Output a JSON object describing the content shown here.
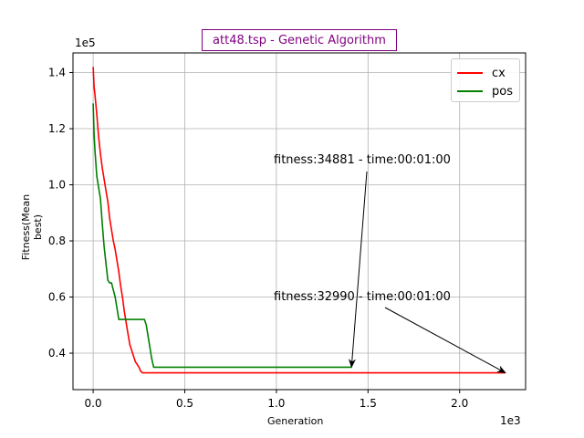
{
  "chart_data": {
    "type": "line",
    "title": "att48.tsp - Genetic Algorithm",
    "xlabel": "Generation",
    "ylabel": "Fitness(Mean best)",
    "x_multiplier_label": "1e3",
    "y_multiplier_label": "1e5",
    "xlim": [
      -0.11,
      2.36
    ],
    "ylim": [
      0.27,
      1.47
    ],
    "x_ticks": [
      0.0,
      0.5,
      1.0,
      1.5,
      2.0
    ],
    "x_tick_labels": [
      "0.0",
      "0.5",
      "1.0",
      "1.5",
      "2.0"
    ],
    "y_ticks": [
      0.4,
      0.6,
      0.8,
      1.0,
      1.2,
      1.4
    ],
    "y_tick_labels": [
      "0.4",
      "0.6",
      "0.8",
      "1.0",
      "1.2",
      "1.4"
    ],
    "grid": true,
    "legend_position": "top-right",
    "series": [
      {
        "name": "cx",
        "color": "#ff0000",
        "x": [
          0.0,
          0.005,
          0.01,
          0.02,
          0.03,
          0.04,
          0.05,
          0.06,
          0.07,
          0.08,
          0.09,
          0.1,
          0.11,
          0.12,
          0.13,
          0.14,
          0.15,
          0.16,
          0.17,
          0.18,
          0.19,
          0.2,
          0.21,
          0.22,
          0.23,
          0.24,
          0.25,
          0.26,
          0.27,
          0.3,
          1.0,
          2.0,
          2.25
        ],
        "y": [
          1.42,
          1.35,
          1.32,
          1.25,
          1.17,
          1.11,
          1.06,
          1.02,
          0.98,
          0.94,
          0.88,
          0.84,
          0.8,
          0.77,
          0.73,
          0.69,
          0.64,
          0.6,
          0.55,
          0.51,
          0.47,
          0.43,
          0.41,
          0.39,
          0.37,
          0.36,
          0.35,
          0.335,
          0.33,
          0.33,
          0.33,
          0.33,
          0.33
        ]
      },
      {
        "name": "pos",
        "color": "#008000",
        "x": [
          0.0,
          0.005,
          0.01,
          0.02,
          0.03,
          0.04,
          0.05,
          0.06,
          0.07,
          0.08,
          0.09,
          0.1,
          0.12,
          0.13,
          0.14,
          0.15,
          0.2,
          0.25,
          0.28,
          0.29,
          0.3,
          0.31,
          0.32,
          0.33,
          0.34,
          0.5,
          1.0,
          1.41
        ],
        "y": [
          1.29,
          1.18,
          1.12,
          1.03,
          0.99,
          0.95,
          0.86,
          0.78,
          0.72,
          0.66,
          0.65,
          0.65,
          0.6,
          0.56,
          0.52,
          0.52,
          0.52,
          0.52,
          0.52,
          0.5,
          0.46,
          0.42,
          0.38,
          0.35,
          0.35,
          0.35,
          0.35,
          0.35
        ]
      }
    ],
    "annotations": [
      {
        "text": "fitness:34881 - time:00:01:00",
        "target": [
          1.41,
          0.35
        ],
        "text_at": [
          1.0,
          1.08
        ]
      },
      {
        "text": "fitness:32990 - time:00:01:00",
        "target": [
          2.25,
          0.33
        ],
        "text_at": [
          1.0,
          0.6
        ]
      }
    ]
  }
}
